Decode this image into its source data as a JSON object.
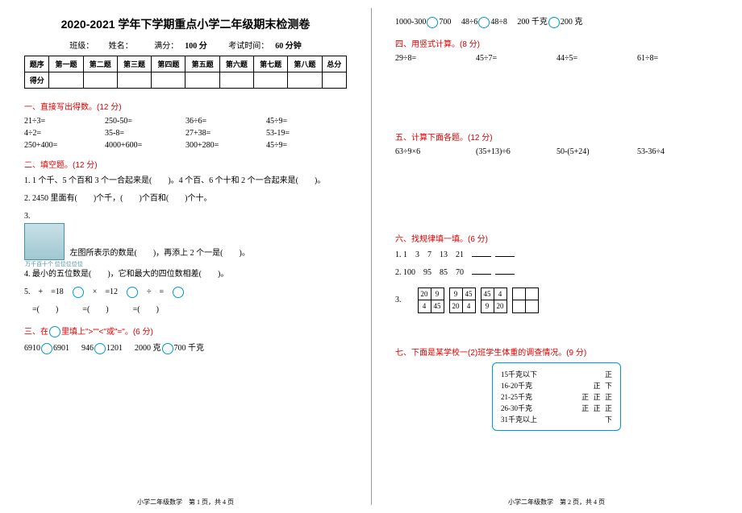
{
  "title": "2020-2021 学年下学期重点小学二年级期末检测卷",
  "info": {
    "class_label": "班级：",
    "name_label": "姓名：",
    "full_label": "满分：",
    "full_score": "100 分",
    "time_label": "考试时间：",
    "time_value": "60 分钟"
  },
  "score_table": {
    "header": [
      "题序",
      "第一题",
      "第二题",
      "第三题",
      "第四题",
      "第五题",
      "第六题",
      "第七题",
      "第八题",
      "总分"
    ],
    "row_label": "得分"
  },
  "sections": {
    "s1": "一、直接写出得数。(12 分)",
    "s2": "二、填空题。(12 分)",
    "s3": "三、在　里填上\">\"\"<\"或\"=\"。(6 分)",
    "s4": "四、用竖式计算。(8 分)",
    "s5": "五、计算下面各题。(12 分)",
    "s6": "六、找规律填一填。(6 分)",
    "s7": "七、下面是某学校一(2)班学生体重的调查情况。(9 分)"
  },
  "s1_rows": [
    [
      "21÷3=",
      "250-50=",
      "36÷6=",
      "45÷9="
    ],
    [
      "4÷2=",
      "35-8=",
      "27+38=",
      "53-19="
    ],
    [
      "250+400=",
      "4000+600=",
      "300+280=",
      "45÷9="
    ]
  ],
  "s2": {
    "q1": "1. 1 个千、5 个百和 3 个一合起来是(　　)。4 个百、6 个十和 2 个一合起来是(　　)。",
    "q2": "2. 2450 里面有(　　)个千，(　　)个百和(　　)个十。",
    "q3_label": "3.",
    "q3_text": "左图所表示的数是(　　)，再添上 2 个一是(　　)。",
    "abacus_labels": "万千百十个\n位位位位位",
    "q4": "4. 最小的五位数是(　　)，它和最大的四位数相差(　　)。",
    "q5_a": "5.　+　=18",
    "q5_b": "　×　=12",
    "q5_c": "　÷　=　",
    "q5_d": "　=(　　)　　　=(　　)　　　=(　　)"
  },
  "s3_rows": [
    [
      "6910",
      "6901",
      "946",
      "1201",
      "2000 克",
      "700 千克"
    ],
    [
      "1000-300",
      "700",
      "48÷6",
      "48÷8",
      "200 千克",
      "200 克"
    ]
  ],
  "s4_items": [
    "29÷8=",
    "45÷7=",
    "44÷5=",
    "61÷8="
  ],
  "s5_items": [
    "63÷9×6",
    "(35+13)÷6",
    "50-(5+24)",
    "53-36÷4"
  ],
  "s6": {
    "q1": "1. 1　3　7　13　21　",
    "q2": "2. 100　95　85　70　",
    "q3_label": "3.",
    "tables": [
      [
        [
          "20",
          "9"
        ],
        [
          "4",
          "45"
        ]
      ],
      [
        [
          "9",
          "45"
        ],
        [
          "20",
          "4"
        ]
      ],
      [
        [
          "45",
          "4"
        ],
        [
          "9",
          "20"
        ]
      ],
      [
        [
          "",
          ""
        ],
        [
          "",
          ""
        ]
      ]
    ]
  },
  "survey": {
    "rows": [
      {
        "range": "15千克以下",
        "tally": "正"
      },
      {
        "range": "16-20千克",
        "tally": "正 下"
      },
      {
        "range": "21-25千克",
        "tally": "正 正 正"
      },
      {
        "range": "26-30千克",
        "tally": "正 正 正"
      },
      {
        "range": "31千克以上",
        "tally": "下"
      }
    ]
  },
  "footers": {
    "p1": "小学二年级数学　第 1 页，共 4 页",
    "p2": "小学二年级数学　第 2 页，共 4 页"
  },
  "colors": {
    "red": "#d00",
    "circle": "#0099cc"
  }
}
